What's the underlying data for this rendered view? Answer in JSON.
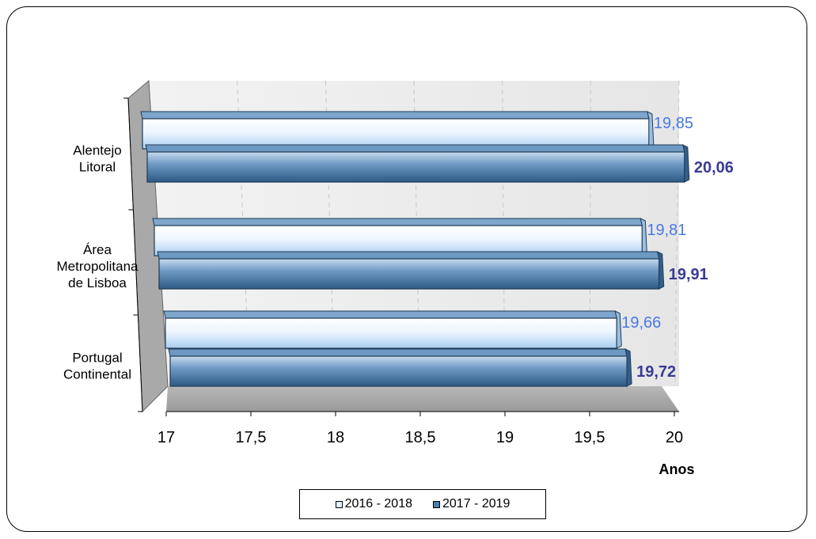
{
  "chart_data": {
    "type": "bar",
    "orientation": "horizontal",
    "categories": [
      "Alentejo Litoral",
      "Área Metropolitana de Lisboa",
      "Portugal Continental"
    ],
    "category_lines": [
      [
        "Alentejo",
        "Litoral"
      ],
      [
        "Área",
        "Metropolitana",
        "de Lisboa"
      ],
      [
        "Portugal",
        "Continental"
      ]
    ],
    "series": [
      {
        "name": "2016 - 2018",
        "values": [
          19.85,
          19.81,
          19.66
        ],
        "labels": [
          "19,85",
          "19,81",
          "19,66"
        ],
        "color": "#d8e9fb"
      },
      {
        "name": "2017 - 2019",
        "values": [
          20.06,
          19.91,
          19.72
        ],
        "labels": [
          "20,06",
          "19,91",
          "19,72"
        ],
        "color": "#4f7fa9"
      }
    ],
    "xlim": [
      17,
      20
    ],
    "xticks": [
      "17",
      "17,5",
      "18",
      "18,5",
      "19",
      "19,5",
      "20"
    ],
    "xlabel": "Anos",
    "ylabel": "",
    "title": "",
    "grid": "vertical dashed",
    "style": "3d",
    "legend_position": "bottom"
  }
}
